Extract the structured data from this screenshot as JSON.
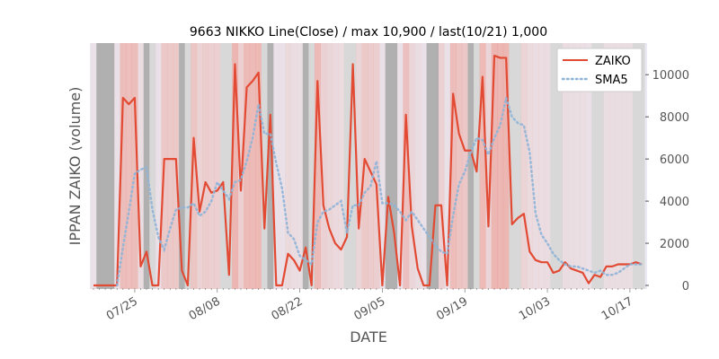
{
  "chart_data": {
    "type": "line",
    "title": "9663 NIKKO Line(Close) / max 10,900 / last(10/21) 1,000",
    "xlabel": "DATE",
    "ylabel": "IPPAN ZAIKO (volume)",
    "x_tick_labels": [
      "07/25",
      "08/08",
      "08/22",
      "09/05",
      "09/19",
      "10/03",
      "10/17"
    ],
    "y_tick_labels": [
      "0",
      "2000",
      "4000",
      "6000",
      "8000",
      "10000"
    ],
    "y_ticks": [
      0,
      2000,
      4000,
      6000,
      8000,
      10000
    ],
    "ylim": [
      0,
      11500
    ],
    "date_range": [
      "07/18",
      "10/22"
    ],
    "legend_position": "top-right",
    "grid": false,
    "background_color": "#eaeaf2",
    "series": [
      {
        "name": "ZAIKO",
        "style": "solid",
        "color": "#e24a33",
        "values": [
          0,
          0,
          0,
          0,
          0,
          8900,
          8600,
          8900,
          900,
          1600,
          0,
          0,
          6000,
          6000,
          6000,
          700,
          0,
          7000,
          3500,
          4900,
          4400,
          4500,
          4900,
          500,
          10500,
          4500,
          9400,
          9700,
          10100,
          2700,
          8100,
          0,
          0,
          1500,
          1200,
          700,
          1800,
          0,
          9700,
          3800,
          2700,
          2000,
          1700,
          2300,
          10500,
          2700,
          6000,
          5400,
          4800,
          0,
          4200,
          2500,
          0,
          8100,
          2800,
          800,
          0,
          0,
          3800,
          3800,
          0,
          9100,
          7200,
          6400,
          6400,
          5400,
          9900,
          2800,
          10900,
          10800,
          10800,
          2900,
          3200,
          3400,
          1600,
          1200,
          1100,
          1100,
          600,
          700,
          1100,
          800,
          700,
          600,
          100,
          500,
          400,
          900,
          900,
          1000,
          1000,
          1000,
          1100,
          1000
        ]
      },
      {
        "name": "SMA5",
        "style": "dotted",
        "color": "#8eb4d8",
        "values": [
          null,
          null,
          null,
          null,
          0,
          1800,
          3500,
          5300,
          5500,
          5600,
          3600,
          2300,
          1700,
          2700,
          3600,
          3700,
          3700,
          3900,
          3300,
          3500,
          4000,
          4900,
          4500,
          4100,
          4900,
          5000,
          5900,
          7000,
          8600,
          7200,
          7200,
          5800,
          4600,
          2500,
          2200,
          1400,
          1200,
          1000,
          3000,
          3500,
          3600,
          3800,
          4000,
          2500,
          3800,
          3800,
          4400,
          4700,
          5900,
          3900,
          3900,
          3800,
          3500,
          3100,
          3500,
          3100,
          2700,
          2300,
          1900,
          1600,
          1500,
          3300,
          4800,
          5400,
          6300,
          7000,
          6900,
          6200,
          7000,
          7600,
          8900,
          8000,
          7700,
          7600,
          6300,
          3400,
          2400,
          2000,
          1500,
          1200,
          1000,
          900,
          900,
          800,
          700,
          600,
          700,
          500,
          500,
          600,
          800,
          1000,
          1000,
          1000
        ]
      }
    ],
    "shading": {
      "gray_days": [
        1,
        2,
        3,
        9,
        10,
        15,
        16,
        22,
        23,
        29,
        30,
        36,
        37,
        43,
        44,
        50,
        51,
        57,
        58,
        64,
        65,
        71,
        72,
        78,
        79,
        85,
        86,
        92,
        93
      ],
      "dark_gray_days": [
        1,
        2,
        3,
        9,
        15,
        30,
        36,
        50,
        51,
        57,
        58,
        64
      ]
    }
  }
}
